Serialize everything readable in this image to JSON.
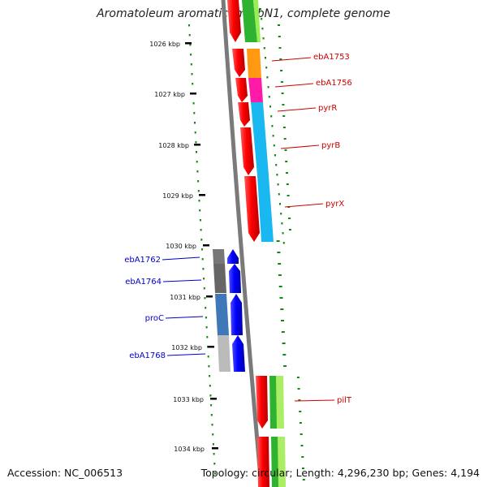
{
  "title": "Aromatoleum aromaticum EbN1, complete genome",
  "footer": {
    "accession": "Accession: NC_006513",
    "topology": "Topology: circular; Length: 4,296,230 bp; Genes: 4,194"
  },
  "ruler": [
    "1026 kbp",
    "1027 kbp",
    "1028 kbp",
    "1029 kbp",
    "1030 kbp",
    "1031 kbp",
    "1032 kbp",
    "1033 kbp",
    "1034 kbp"
  ],
  "right_labels": [
    "ebA1753",
    "ebA1756",
    "pyrR",
    "pyrB",
    "pyrX",
    "pilT"
  ],
  "left_labels": [
    "ebA1762",
    "ebA1764",
    "proC",
    "ebA1768"
  ],
  "colors": {
    "forward_gene": "#ff0000",
    "reverse_gene": "#0000ff",
    "label_forward": "#cc0000",
    "label_reverse": "#0000cc",
    "ruler_tick": "#118811",
    "backbone": "#7a7a7a"
  }
}
